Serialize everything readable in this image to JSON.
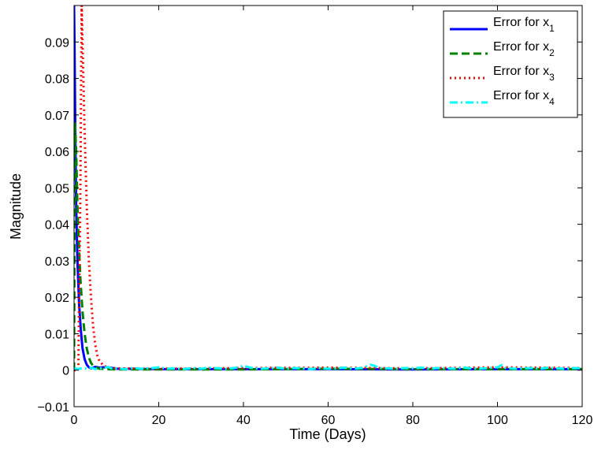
{
  "chart_data": {
    "type": "line",
    "xlabel": "Time (Days)",
    "ylabel": "Magnitude",
    "xlim": [
      0,
      120
    ],
    "ylim": [
      -0.01,
      0.1
    ],
    "xticks": [
      0,
      20,
      40,
      60,
      80,
      100,
      120
    ],
    "yticks": [
      -0.01,
      0,
      0.01,
      0.02,
      0.03,
      0.04,
      0.05,
      0.06,
      0.07,
      0.08,
      0.09
    ],
    "ytick_labels": [
      "−0.01",
      "0",
      "0.01",
      "0.02",
      "0.03",
      "0.04",
      "0.05",
      "0.06",
      "0.07",
      "0.08",
      "0.09"
    ],
    "grid": false,
    "legend_position": "top-right",
    "series": [
      {
        "name": "Error for x",
        "subscript": "1",
        "color": "#0000ff",
        "style": "solid",
        "x": [
          0,
          0.1,
          0.3,
          0.5,
          0.8,
          1.2,
          1.6,
          2.0,
          2.5,
          3.0,
          3.5,
          4.0,
          5,
          6,
          7,
          8,
          10,
          20,
          40,
          60,
          80,
          100,
          120
        ],
        "y": [
          0.1,
          0.09,
          0.065,
          0.045,
          0.03,
          0.018,
          0.011,
          0.006,
          0.003,
          0.0015,
          0.0008,
          0.0005,
          0.0009,
          0.0007,
          0.0008,
          0.0008,
          0.0004,
          0.0003,
          0.0003,
          0.0003,
          0.0002,
          0.0003,
          0.0003
        ]
      },
      {
        "name": "Error for x",
        "subscript": "2",
        "color": "#008000",
        "style": "dashed",
        "x": [
          0,
          0.2,
          0.5,
          0.8,
          1.0,
          1.5,
          2.0,
          2.5,
          3.0,
          3.5,
          4.0,
          4.5,
          5,
          6,
          8,
          10,
          20,
          40,
          60,
          80,
          100,
          120
        ],
        "y": [
          0,
          0.068,
          0.06,
          0.045,
          0.038,
          0.025,
          0.016,
          0.01,
          0.006,
          0.0035,
          0.002,
          0.0012,
          0.0008,
          0.0004,
          0.0003,
          0.0002,
          0.0002,
          0.0002,
          0.0004,
          0.0003,
          0.0003,
          0.0003
        ]
      },
      {
        "name": "Error for x",
        "subscript": "3",
        "color": "#ff0000",
        "style": "dotted",
        "x": [
          0,
          1.0,
          1.5,
          1.8,
          2.0,
          2.5,
          3.0,
          3.5,
          4.0,
          4.5,
          5.0,
          5.5,
          6,
          7,
          8,
          10,
          20,
          40,
          60,
          80,
          100,
          120
        ],
        "y": [
          0,
          0,
          0.05,
          0.1,
          0.09,
          0.065,
          0.045,
          0.03,
          0.02,
          0.012,
          0.007,
          0.004,
          0.0025,
          0.0012,
          0.0008,
          0.0005,
          0.0004,
          0.0006,
          0.0007,
          0.0005,
          0.0008,
          0.0006
        ]
      },
      {
        "name": "Error for x",
        "subscript": "4",
        "color": "#00ffff",
        "style": "dashdot",
        "x": [
          0,
          1,
          2,
          3,
          4,
          5,
          6,
          7,
          8,
          9,
          10,
          12,
          14,
          16,
          18,
          20,
          22,
          24,
          26,
          28,
          30,
          32,
          34,
          36,
          38,
          40,
          41,
          42,
          44,
          46,
          48,
          50,
          52,
          54,
          56,
          58,
          60,
          62,
          64,
          66,
          68,
          70,
          71,
          72,
          74,
          76,
          78,
          80,
          82,
          84,
          86,
          88,
          90,
          92,
          94,
          96,
          98,
          100,
          101,
          102,
          104,
          106,
          108,
          110,
          112,
          114,
          116,
          118,
          120
        ],
        "y": [
          0.0005,
          0.0003,
          0.0006,
          0.0004,
          0.0007,
          0.0003,
          0.0005,
          0.0006,
          0.0009,
          0.0004,
          0.0005,
          0.0003,
          0.0006,
          0.0004,
          0.0005,
          0.0008,
          0.0004,
          0.0005,
          0.0003,
          0.0006,
          0.0004,
          0.0007,
          0.0005,
          0.0004,
          0.0006,
          0.0012,
          0.0009,
          0.0006,
          0.0004,
          0.0005,
          0.0007,
          0.0004,
          0.0006,
          0.0005,
          0.0003,
          0.0006,
          0.0004,
          0.0005,
          0.0007,
          0.0004,
          0.0006,
          0.0015,
          0.0012,
          0.0006,
          0.0005,
          0.0004,
          0.0006,
          0.0005,
          0.0007,
          0.0004,
          0.0006,
          0.0005,
          0.0004,
          0.0007,
          0.0005,
          0.0004,
          0.0006,
          0.0008,
          0.0014,
          0.0006,
          0.0004,
          0.0005,
          0.0006,
          0.0004,
          0.0007,
          0.0005,
          0.0004,
          0.0006,
          0.0005
        ]
      }
    ]
  }
}
